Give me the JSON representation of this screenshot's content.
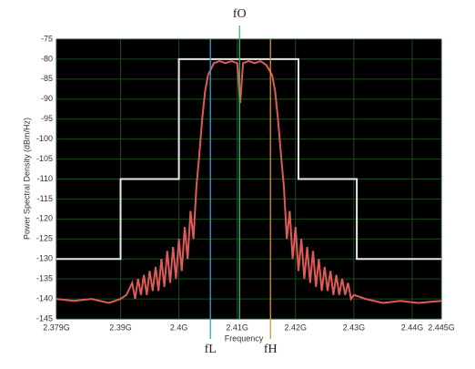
{
  "chart_data": {
    "type": "line",
    "xlabel": "Frequency",
    "ylabel": "Power Spectral Density (dBm/Hz)",
    "xlim": [
      2.379,
      2.445
    ],
    "ylim": [
      -145,
      -75
    ],
    "xticks": [
      {
        "value": 2.379,
        "label": "2.379G"
      },
      {
        "value": 2.39,
        "label": "2.39G"
      },
      {
        "value": 2.4,
        "label": "2.4G"
      },
      {
        "value": 2.41,
        "label": "2.41G"
      },
      {
        "value": 2.42,
        "label": "2.42G"
      },
      {
        "value": 2.43,
        "label": "2.43G"
      },
      {
        "value": 2.44,
        "label": "2.44G"
      },
      {
        "value": 2.445,
        "label": "2.445G"
      }
    ],
    "yticks": [
      -75,
      -80,
      -85,
      -90,
      -95,
      -100,
      -105,
      -110,
      -115,
      -120,
      -125,
      -130,
      -135,
      -140,
      -145
    ],
    "grid": true,
    "series": [
      {
        "color": "#e8e8e8",
        "x": [
          2.379,
          2.39,
          2.39,
          2.4,
          2.4,
          2.4205,
          2.4205,
          2.4305,
          2.4305,
          2.445
        ],
        "values": [
          -130,
          -130,
          -110,
          -110,
          -80,
          -80,
          -110,
          -110,
          -130,
          -130
        ]
      },
      {
        "color": "#e05a5a",
        "x": [
          2.379,
          2.382,
          2.385,
          2.388,
          2.39,
          2.391,
          2.392,
          2.3925,
          2.393,
          2.3935,
          2.394,
          2.3945,
          2.395,
          2.3955,
          2.396,
          2.3965,
          2.397,
          2.3975,
          2.398,
          2.3985,
          2.399,
          2.3995,
          2.4,
          2.4005,
          2.401,
          2.4015,
          2.402,
          2.4025,
          2.403,
          2.4035,
          2.404,
          2.4045,
          2.405,
          2.406,
          2.407,
          2.408,
          2.409,
          2.41,
          2.4105,
          2.411,
          2.412,
          2.413,
          2.414,
          2.415,
          2.416,
          2.4165,
          2.417,
          2.4175,
          2.418,
          2.4185,
          2.419,
          2.4195,
          2.42,
          2.4205,
          2.421,
          2.4215,
          2.422,
          2.4225,
          2.423,
          2.4235,
          2.424,
          2.4245,
          2.425,
          2.4255,
          2.426,
          2.4265,
          2.427,
          2.4275,
          2.428,
          2.4285,
          2.429,
          2.4295,
          2.43,
          2.432,
          2.435,
          2.438,
          2.441,
          2.445
        ],
        "values": [
          -140,
          -140.5,
          -140,
          -141,
          -140,
          -139,
          -136,
          -140,
          -135,
          -139,
          -134,
          -139,
          -133,
          -138,
          -132,
          -138,
          -130,
          -137,
          -128,
          -136,
          -127,
          -135,
          -125,
          -133,
          -122,
          -130,
          -118,
          -125,
          -112,
          -104,
          -95,
          -88,
          -84,
          -81,
          -80.5,
          -81,
          -80.5,
          -81,
          -91,
          -81,
          -80.5,
          -81,
          -80.5,
          -81.5,
          -84,
          -88,
          -95,
          -104,
          -112,
          -125,
          -118,
          -130,
          -122,
          -133,
          -125,
          -135,
          -127,
          -136,
          -128,
          -137,
          -130,
          -138,
          -132,
          -138,
          -133,
          -139,
          -134,
          -139,
          -135,
          -139,
          -136,
          -140,
          -139,
          -140,
          -141,
          -140.5,
          -141,
          -140.5
        ]
      }
    ],
    "markers": [
      {
        "label": "fO",
        "x": 2.4104,
        "color": "#3cb878"
      },
      {
        "label": "fL",
        "x": 2.4054,
        "color": "#3a9fd8"
      },
      {
        "label": "fH",
        "x": 2.4157,
        "color": "#e0903a"
      }
    ]
  }
}
